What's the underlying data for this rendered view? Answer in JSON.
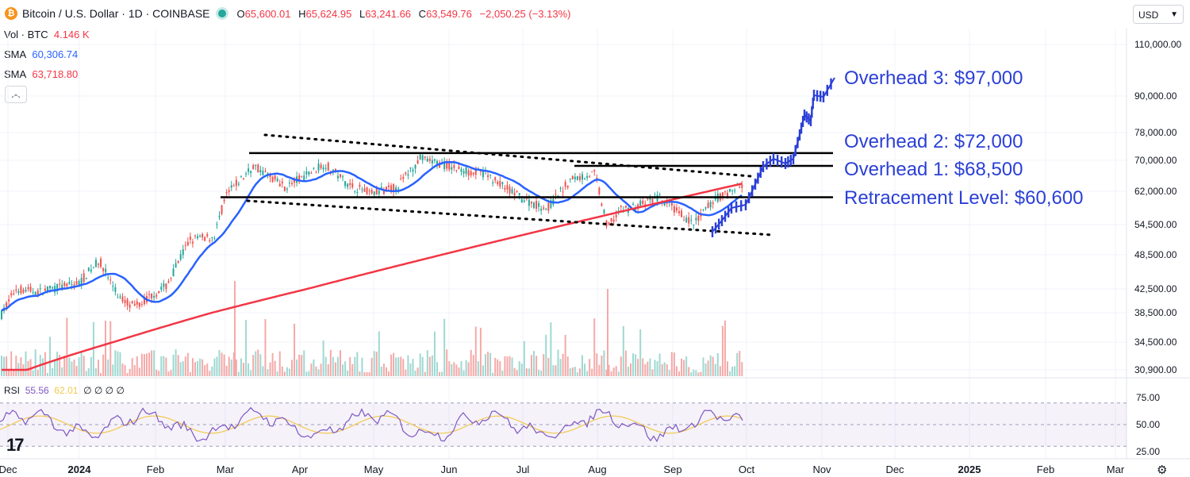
{
  "header": {
    "symbol_icon": "bitcoin-icon",
    "title": "Bitcoin / U.S. Dollar · 1D · COINBASE",
    "ohlc": [
      {
        "k": "O",
        "v": "65,600.01"
      },
      {
        "k": "H",
        "v": "65,624.95"
      },
      {
        "k": "L",
        "v": "63,241.66"
      },
      {
        "k": "C",
        "v": "63,549.76"
      }
    ],
    "change": "−2,050.25 (−3.13%)",
    "status_color": "#26a69a"
  },
  "legend": {
    "vol_label": "Vol · BTC",
    "vol_value": "4.146 K",
    "sma1_label": "SMA",
    "sma1_value": "60,306.74",
    "sma1_color": "#2962ff",
    "sma2_label": "SMA",
    "sma2_value": "63,718.80",
    "sma2_color": "#f23645"
  },
  "currency": {
    "label": "USD"
  },
  "annotations": {
    "overhead3": "Overhead 3: $97,000",
    "overhead2": "Overhead 2: $72,000",
    "overhead1": "Overhead 1: $68,500",
    "retracement": "Retracement Level: $60,600"
  },
  "rsi": {
    "label": "RSI",
    "value1": "55.56",
    "value2": "62.01",
    "extras": "∅ ∅ ∅ ∅"
  },
  "chart_data": {
    "type": "candlestick",
    "price_axis_ticks": [
      "110,000.00",
      "90,000.00",
      "78,000.00",
      "70,000.00",
      "62,000.00",
      "54,500.00",
      "48,500.00",
      "42,500.00",
      "38,500.00",
      "34,500.00",
      "30,900.00"
    ],
    "rsi_axis_ticks": [
      "75.00",
      "50.00",
      "25.00"
    ],
    "time_ticks": [
      "Dec",
      "2024",
      "Feb",
      "Mar",
      "Apr",
      "May",
      "Jun",
      "Jul",
      "Aug",
      "Sep",
      "Oct",
      "Nov",
      "Dec",
      "2025",
      "Feb",
      "Mar"
    ],
    "horizontal_levels": [
      72000,
      68500,
      60600
    ],
    "overhead3_price": 97000,
    "sma_colors": {
      "sma50": "#2962ff",
      "sma200": "#f23645"
    },
    "projection_color": "#2b3fd6"
  }
}
